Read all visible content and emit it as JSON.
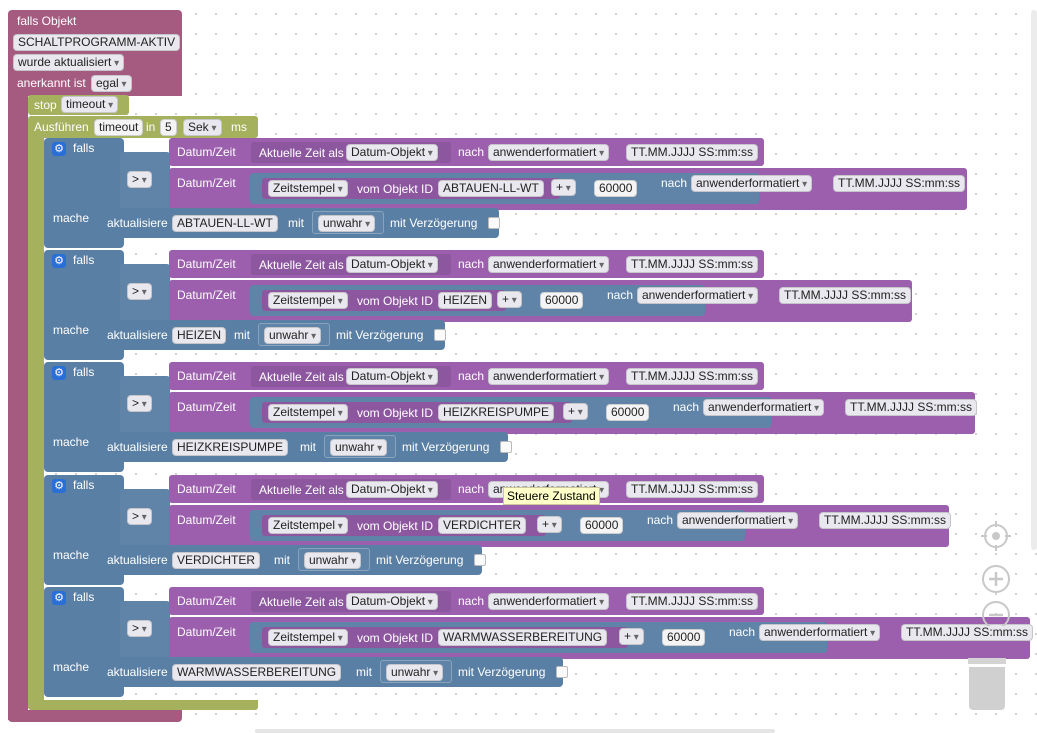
{
  "trigger": {
    "label_if_object": "falls Objekt",
    "object_id": "SCHALTPROGRAMM-AKTIV",
    "event": "wurde aktualisiert",
    "ack_label": "anerkannt ist",
    "ack_value": "egal"
  },
  "stop": {
    "label": "stop",
    "value": "timeout"
  },
  "timeout_block": {
    "label": "Ausführen",
    "name": "timeout",
    "in_label": "in",
    "delay": "5",
    "unit": "Sek",
    "ms_label": "ms"
  },
  "common": {
    "falls": "falls",
    "mache": "mache",
    "operator": ">",
    "datumzeit": "Datum/Zeit",
    "aktuelle_zeit": "Aktuelle Zeit als",
    "datum_objekt": "Datum-Objekt",
    "nach": "nach",
    "format": "anwenderformatiert",
    "format_text": "TT.MM.JJJJ SS:mm:ss",
    "zeitstempel": "Zeitstempel",
    "vom_objekt": "vom Objekt ID",
    "plus": "+",
    "summand": "60000",
    "aktualisiere": "aktualisiere",
    "mit": "mit",
    "wert": "unwahr",
    "verzoegerung": "mit Verzögerung"
  },
  "conditions": [
    {
      "object": "ABTAUEN-LL-WT"
    },
    {
      "object": "HEIZEN"
    },
    {
      "object": "HEIZKREISPUMPE"
    },
    {
      "object": "VERDICHTER"
    },
    {
      "object": "WARMWASSERBEREITUNG"
    }
  ],
  "tooltip": "Steuere Zustand"
}
